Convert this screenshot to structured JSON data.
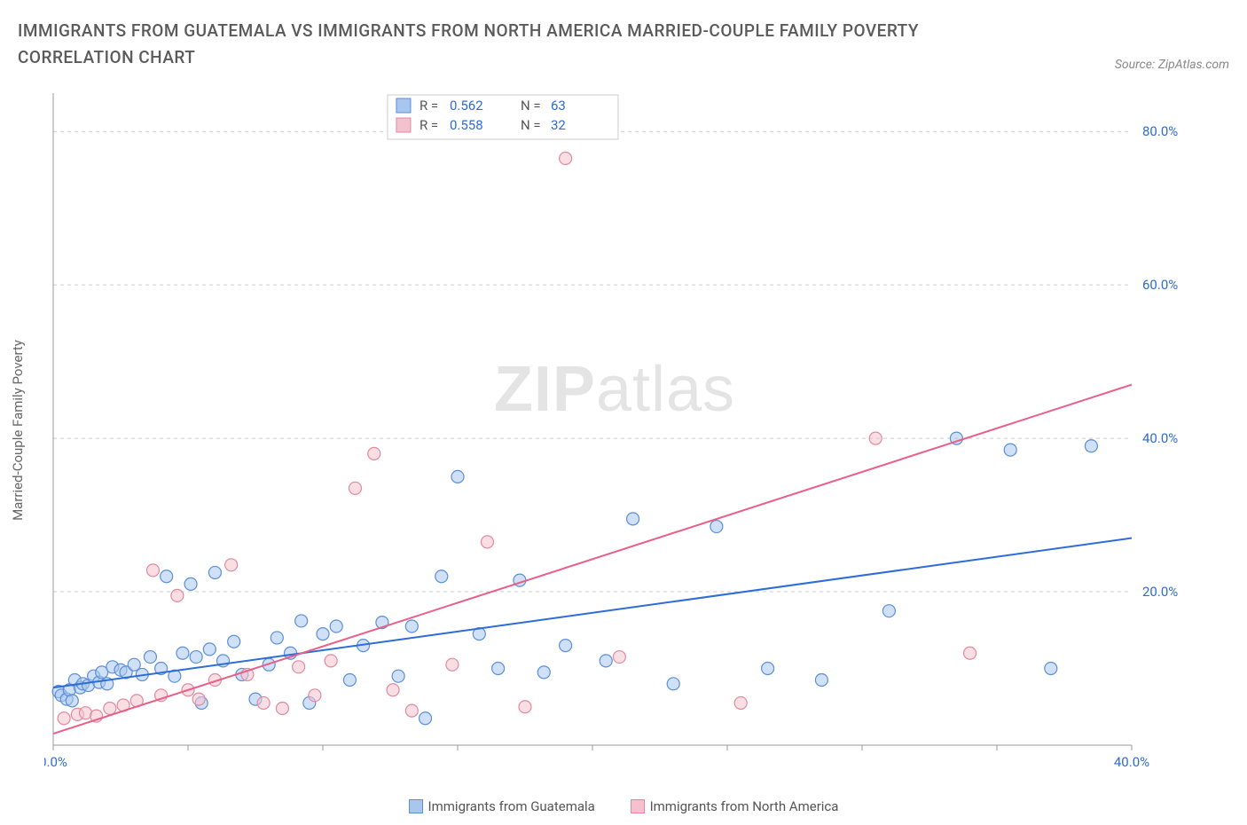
{
  "header": {
    "title": "IMMIGRANTS FROM GUATEMALA VS IMMIGRANTS FROM NORTH AMERICA MARRIED-COUPLE FAMILY POVERTY CORRELATION CHART",
    "source": "Source: ZipAtlas.com"
  },
  "watermark": {
    "part1": "ZIP",
    "part2": "atlas"
  },
  "chart": {
    "type": "scatter",
    "ylabel": "Married-Couple Family Poverty",
    "background_color": "#ffffff",
    "grid_color": "#cccccc",
    "axis_color": "#999999",
    "xlim": [
      0,
      40
    ],
    "ylim": [
      0,
      85
    ],
    "xtick_positions": [
      0,
      5,
      10,
      15,
      20,
      25,
      30,
      35,
      40
    ],
    "xtick_labels": [
      "0.0%",
      "",
      "",
      "",
      "",
      "",
      "",
      "",
      "40.0%"
    ],
    "ytick_positions": [
      20,
      40,
      60,
      80
    ],
    "ytick_labels": [
      "20.0%",
      "40.0%",
      "60.0%",
      "80.0%"
    ],
    "marker_radius": 7,
    "marker_opacity": 0.55,
    "line_width": 2,
    "series": [
      {
        "name": "Immigrants from Guatemala",
        "color_fill": "#a9c6ef",
        "color_stroke": "#5b8fd6",
        "line_color": "#2e6cd6",
        "R": "0.562",
        "N": "63",
        "trend": {
          "x1": 0,
          "y1": 7.5,
          "x2": 40,
          "y2": 27
        },
        "points": [
          [
            0.2,
            7
          ],
          [
            0.3,
            6.5
          ],
          [
            0.5,
            6
          ],
          [
            0.6,
            7.2
          ],
          [
            0.7,
            5.8
          ],
          [
            0.8,
            8.5
          ],
          [
            1.0,
            7.5
          ],
          [
            1.1,
            8
          ],
          [
            1.3,
            7.8
          ],
          [
            1.5,
            9
          ],
          [
            1.7,
            8.2
          ],
          [
            1.8,
            9.5
          ],
          [
            2.0,
            8
          ],
          [
            2.2,
            10.2
          ],
          [
            2.5,
            9.8
          ],
          [
            2.7,
            9.5
          ],
          [
            3.0,
            10.5
          ],
          [
            3.3,
            9.2
          ],
          [
            3.6,
            11.5
          ],
          [
            4.0,
            10
          ],
          [
            4.2,
            22
          ],
          [
            4.5,
            9
          ],
          [
            4.8,
            12
          ],
          [
            5.1,
            21
          ],
          [
            5.3,
            11.5
          ],
          [
            5.5,
            5.5
          ],
          [
            5.8,
            12.5
          ],
          [
            6.0,
            22.5
          ],
          [
            6.3,
            11
          ],
          [
            6.7,
            13.5
          ],
          [
            7.0,
            9.2
          ],
          [
            7.5,
            6
          ],
          [
            8.0,
            10.5
          ],
          [
            8.3,
            14
          ],
          [
            8.8,
            12
          ],
          [
            9.2,
            16.2
          ],
          [
            9.5,
            5.5
          ],
          [
            10.0,
            14.5
          ],
          [
            10.5,
            15.5
          ],
          [
            11.0,
            8.5
          ],
          [
            11.5,
            13
          ],
          [
            12.2,
            16
          ],
          [
            12.8,
            9
          ],
          [
            13.3,
            15.5
          ],
          [
            13.8,
            3.5
          ],
          [
            14.4,
            22
          ],
          [
            15.0,
            35
          ],
          [
            15.8,
            14.5
          ],
          [
            16.5,
            10
          ],
          [
            17.3,
            21.5
          ],
          [
            18.2,
            9.5
          ],
          [
            19.0,
            13
          ],
          [
            20.5,
            11
          ],
          [
            21.5,
            29.5
          ],
          [
            23.0,
            8
          ],
          [
            24.6,
            28.5
          ],
          [
            26.5,
            10
          ],
          [
            28.5,
            8.5
          ],
          [
            31.0,
            17.5
          ],
          [
            33.5,
            40
          ],
          [
            35.5,
            38.5
          ],
          [
            37.0,
            10
          ],
          [
            38.5,
            39
          ]
        ]
      },
      {
        "name": "Immigrants from North America",
        "color_fill": "#f4c2ce",
        "color_stroke": "#e08aa0",
        "line_color": "#e85f88",
        "R": "0.558",
        "N": "32",
        "trend": {
          "x1": 0,
          "y1": 1.5,
          "x2": 40,
          "y2": 47
        },
        "points": [
          [
            0.4,
            3.5
          ],
          [
            0.9,
            4
          ],
          [
            1.2,
            4.2
          ],
          [
            1.6,
            3.8
          ],
          [
            2.1,
            4.8
          ],
          [
            2.6,
            5.2
          ],
          [
            3.1,
            5.8
          ],
          [
            3.7,
            22.8
          ],
          [
            4.0,
            6.5
          ],
          [
            4.6,
            19.5
          ],
          [
            5.0,
            7.2
          ],
          [
            5.4,
            6
          ],
          [
            6.0,
            8.5
          ],
          [
            6.6,
            23.5
          ],
          [
            7.2,
            9.2
          ],
          [
            7.8,
            5.5
          ],
          [
            8.5,
            4.8
          ],
          [
            9.1,
            10.2
          ],
          [
            9.7,
            6.5
          ],
          [
            10.3,
            11
          ],
          [
            11.2,
            33.5
          ],
          [
            11.9,
            38
          ],
          [
            12.6,
            7.2
          ],
          [
            13.3,
            4.5
          ],
          [
            14.8,
            10.5
          ],
          [
            16.1,
            26.5
          ],
          [
            17.5,
            5
          ],
          [
            19.0,
            76.5
          ],
          [
            21.0,
            11.5
          ],
          [
            25.5,
            5.5
          ],
          [
            30.5,
            40
          ],
          [
            34.0,
            12
          ]
        ]
      }
    ],
    "stats_legend": {
      "bg": "#ffffff",
      "border": "#cccccc",
      "label_color": "#555555",
      "value_color": "#2e6cd6"
    },
    "bottom_legend": {
      "items": [
        {
          "label": "Immigrants from Guatemala",
          "fill": "#a9c6ef",
          "stroke": "#5b8fd6"
        },
        {
          "label": "Immigrants from North America",
          "fill": "#f4c2ce",
          "stroke": "#e08aa0"
        }
      ]
    }
  }
}
